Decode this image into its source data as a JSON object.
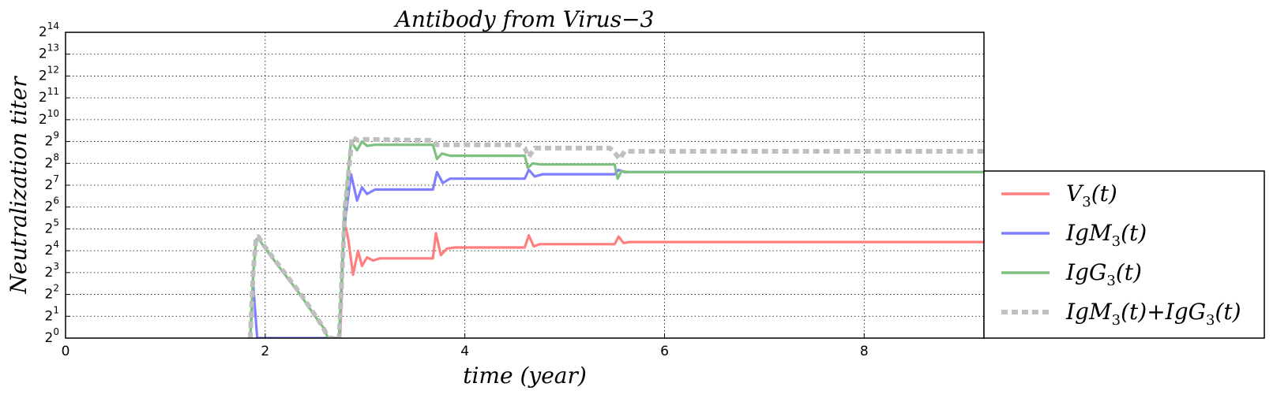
{
  "chart_data": {
    "type": "line",
    "title": "Antibody from Virus−3",
    "xlabel": "time (year)",
    "ylabel": "Neutralization  titer",
    "xlim": [
      0,
      9.2
    ],
    "ylim_log2": [
      0,
      14
    ],
    "y_scale": "log2",
    "grid": true,
    "x_ticks": [
      "0",
      "2",
      "4",
      "6",
      "8"
    ],
    "x_tick_values": [
      0,
      2,
      4,
      6,
      8
    ],
    "y_tick_base": "2",
    "y_tick_exponents": [
      "0",
      "1",
      "2",
      "3",
      "4",
      "5",
      "6",
      "7",
      "8",
      "9",
      "10",
      "11",
      "12",
      "13",
      "14"
    ],
    "legend_position": "lower right (outside)",
    "series": [
      {
        "name": "V3(t)",
        "legend_main": "V",
        "legend_sub": "3",
        "legend_rest": "(t)",
        "color": "#ff7f7f",
        "style": "solid",
        "points": [
          [
            2.75,
            0
          ],
          [
            2.79,
            5.4
          ],
          [
            2.83,
            4.6
          ],
          [
            2.88,
            2.9
          ],
          [
            2.93,
            4.0
          ],
          [
            2.97,
            3.3
          ],
          [
            3.02,
            3.7
          ],
          [
            3.08,
            3.55
          ],
          [
            3.15,
            3.65
          ],
          [
            3.68,
            3.65
          ],
          [
            3.71,
            4.8
          ],
          [
            3.76,
            3.8
          ],
          [
            3.82,
            4.1
          ],
          [
            3.9,
            4.15
          ],
          [
            4.6,
            4.15
          ],
          [
            4.64,
            4.7
          ],
          [
            4.69,
            4.2
          ],
          [
            4.75,
            4.3
          ],
          [
            5.5,
            4.3
          ],
          [
            5.54,
            4.65
          ],
          [
            5.59,
            4.35
          ],
          [
            5.65,
            4.4
          ],
          [
            9.2,
            4.4
          ]
        ]
      },
      {
        "name": "IgM3(t)",
        "legend_main": "IgM",
        "legend_sub": "3",
        "legend_rest": "(t)",
        "color": "#7f7fff",
        "style": "solid",
        "points": [
          [
            1.85,
            0
          ],
          [
            1.88,
            2.4
          ],
          [
            1.92,
            0
          ],
          [
            2.74,
            0
          ],
          [
            2.79,
            5.0
          ],
          [
            2.86,
            7.5
          ],
          [
            2.92,
            6.3
          ],
          [
            2.97,
            6.9
          ],
          [
            3.02,
            6.6
          ],
          [
            3.1,
            6.8
          ],
          [
            3.68,
            6.8
          ],
          [
            3.72,
            7.6
          ],
          [
            3.78,
            7.1
          ],
          [
            3.85,
            7.3
          ],
          [
            4.6,
            7.3
          ],
          [
            4.64,
            7.7
          ],
          [
            4.7,
            7.4
          ],
          [
            4.78,
            7.5
          ],
          [
            5.5,
            7.5
          ],
          [
            5.54,
            7.7
          ],
          [
            5.6,
            7.6
          ],
          [
            9.2,
            7.6
          ]
        ]
      },
      {
        "name": "IgG3(t)",
        "legend_main": "IgG",
        "legend_sub": "3",
        "legend_rest": "(t)",
        "color": "#7fbf7f",
        "style": "solid",
        "points": [
          [
            1.85,
            0
          ],
          [
            1.88,
            3.0
          ],
          [
            1.91,
            4.5
          ],
          [
            1.93,
            4.6
          ],
          [
            1.97,
            4.3
          ],
          [
            2.05,
            3.8
          ],
          [
            2.2,
            2.9
          ],
          [
            2.35,
            2.0
          ],
          [
            2.5,
            1.0
          ],
          [
            2.58,
            0.5
          ],
          [
            2.63,
            0
          ],
          [
            2.74,
            0
          ],
          [
            2.79,
            5.5
          ],
          [
            2.86,
            9.0
          ],
          [
            2.92,
            8.6
          ],
          [
            2.97,
            9.0
          ],
          [
            3.02,
            8.8
          ],
          [
            3.1,
            8.85
          ],
          [
            3.68,
            8.85
          ],
          [
            3.72,
            8.2
          ],
          [
            3.77,
            8.45
          ],
          [
            3.85,
            8.35
          ],
          [
            4.6,
            8.35
          ],
          [
            4.63,
            7.8
          ],
          [
            4.68,
            8.0
          ],
          [
            4.76,
            7.95
          ],
          [
            5.5,
            7.95
          ],
          [
            5.53,
            7.3
          ],
          [
            5.57,
            7.65
          ],
          [
            5.63,
            7.6
          ],
          [
            9.2,
            7.6
          ]
        ]
      },
      {
        "name": "IgM3(t)+IgG3(t)",
        "legend_main": "IgM",
        "legend_sub": "3",
        "legend_rest": "(t)+IgG",
        "legend_sub2": "3",
        "legend_rest2": "(t)",
        "color": "#bfbfbf",
        "style": "dotted",
        "points": [
          [
            1.85,
            0
          ],
          [
            1.88,
            3.1
          ],
          [
            1.91,
            4.6
          ],
          [
            1.93,
            4.65
          ],
          [
            1.97,
            4.35
          ],
          [
            2.05,
            3.85
          ],
          [
            2.2,
            2.95
          ],
          [
            2.35,
            2.05
          ],
          [
            2.5,
            1.05
          ],
          [
            2.58,
            0.5
          ],
          [
            2.63,
            0
          ],
          [
            2.74,
            0
          ],
          [
            2.8,
            6.0
          ],
          [
            2.87,
            9.2
          ],
          [
            2.93,
            9.05
          ],
          [
            3.0,
            9.1
          ],
          [
            3.68,
            9.05
          ],
          [
            3.72,
            8.85
          ],
          [
            4.55,
            8.85
          ],
          [
            4.6,
            8.7
          ],
          [
            4.64,
            8.3
          ],
          [
            4.7,
            8.7
          ],
          [
            5.45,
            8.7
          ],
          [
            5.5,
            8.5
          ],
          [
            5.55,
            8.2
          ],
          [
            5.6,
            8.55
          ],
          [
            9.2,
            8.55
          ]
        ]
      }
    ]
  }
}
